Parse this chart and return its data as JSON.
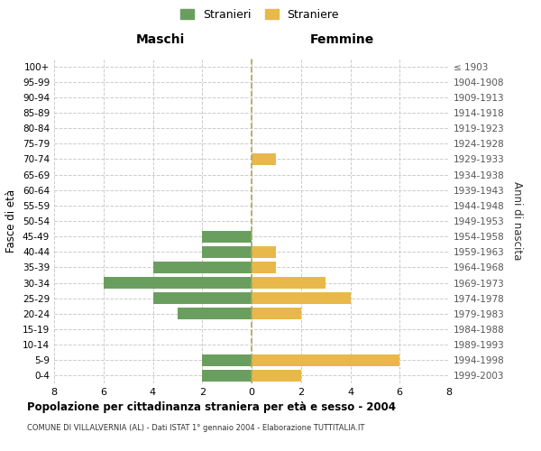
{
  "age_groups": [
    "100+",
    "95-99",
    "90-94",
    "85-89",
    "80-84",
    "75-79",
    "70-74",
    "65-69",
    "60-64",
    "55-59",
    "50-54",
    "45-49",
    "40-44",
    "35-39",
    "30-34",
    "25-29",
    "20-24",
    "15-19",
    "10-14",
    "5-9",
    "0-4"
  ],
  "birth_years": [
    "≤ 1903",
    "1904-1908",
    "1909-1913",
    "1914-1918",
    "1919-1923",
    "1924-1928",
    "1929-1933",
    "1934-1938",
    "1939-1943",
    "1944-1948",
    "1949-1953",
    "1954-1958",
    "1959-1963",
    "1964-1968",
    "1969-1973",
    "1974-1978",
    "1979-1983",
    "1984-1988",
    "1989-1993",
    "1994-1998",
    "1999-2003"
  ],
  "maschi": [
    0,
    0,
    0,
    0,
    0,
    0,
    0,
    0,
    0,
    0,
    0,
    2,
    2,
    4,
    6,
    4,
    3,
    0,
    0,
    2,
    2
  ],
  "femmine": [
    0,
    0,
    0,
    0,
    0,
    0,
    1,
    0,
    0,
    0,
    0,
    0,
    1,
    1,
    3,
    4,
    2,
    0,
    0,
    6,
    2
  ],
  "maschi_color": "#6a9e5f",
  "femmine_color": "#e8b84b",
  "title": "Popolazione per cittadinanza straniera per età e sesso - 2004",
  "subtitle": "COMUNE DI VILLALVERNIA (AL) - Dati ISTAT 1° gennaio 2004 - Elaborazione TUTTITALIA.IT",
  "ylabel_left": "Fasce di età",
  "ylabel_right": "Anni di nascita",
  "xlabel_left": "Maschi",
  "xlabel_right": "Femmine",
  "legend_maschi": "Stranieri",
  "legend_femmine": "Straniere",
  "xlim": 8,
  "bg_color": "#ffffff",
  "grid_color": "#cccccc",
  "bar_height": 0.75
}
